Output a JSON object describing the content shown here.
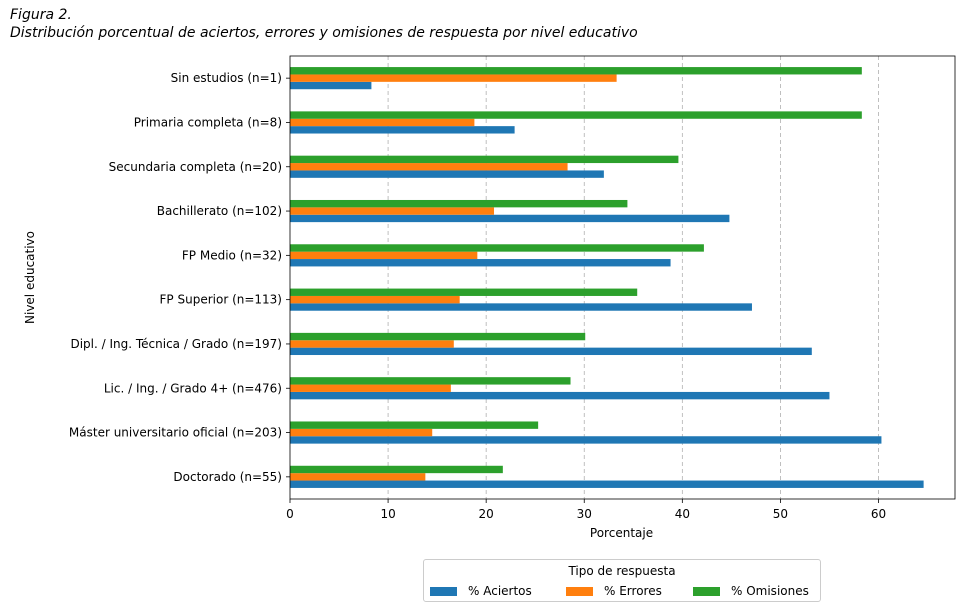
{
  "figure": {
    "label": "Figura 2.",
    "title": "Distribución porcentual de aciertos, errores y omisiones de respuesta por nivel educativo"
  },
  "chart_data": {
    "type": "bar",
    "orientation": "horizontal",
    "categories": [
      "Sin estudios (n=1)",
      "Primaria completa (n=8)",
      "Secundaria completa (n=20)",
      "Bachillerato (n=102)",
      "FP Medio (n=32)",
      "FP Superior (n=113)",
      "Dipl. / Ing. Técnica / Grado (n=197)",
      "Lic. / Ing. / Grado 4+ (n=476)",
      "Máster universitario oficial (n=203)",
      "Doctorado (n=55)"
    ],
    "series": [
      {
        "name": "% Aciertos",
        "color": "#1f77b4",
        "values": [
          8.3,
          22.9,
          32.0,
          44.8,
          38.8,
          47.1,
          53.2,
          55.0,
          60.3,
          64.6
        ]
      },
      {
        "name": "% Errores",
        "color": "#ff7f0e",
        "values": [
          33.3,
          18.8,
          28.3,
          20.8,
          19.1,
          17.3,
          16.7,
          16.4,
          14.5,
          13.8
        ]
      },
      {
        "name": "% Omisiones",
        "color": "#2ca02c",
        "values": [
          58.3,
          58.3,
          39.6,
          34.4,
          42.2,
          35.4,
          30.1,
          28.6,
          25.3,
          21.7
        ]
      }
    ],
    "xlabel": "Porcentaje",
    "ylabel": "Nivel educativo",
    "xlim": [
      0,
      67.8
    ],
    "xticks": [
      0,
      10,
      20,
      30,
      40,
      50,
      60
    ],
    "grid": "x-dashed",
    "legend": {
      "title": "Tipo de respuesta",
      "placement": "bottom-center"
    }
  }
}
